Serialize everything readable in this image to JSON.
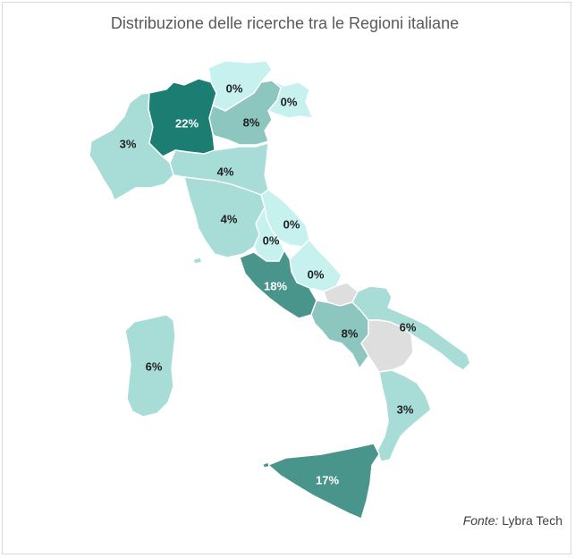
{
  "title": "Distribuzione delle ricerche tra le Regioni italiane",
  "source": {
    "label": "Fonte:",
    "value": "Lybra Tech"
  },
  "colors": {
    "c0": "#c6f1ef",
    "c1": "#a7dcd7",
    "c2": "#8cc6bf",
    "c3": "#5ea49b",
    "c4": "#4a958b",
    "c5": "#1c7d72",
    "nodata": "#dedede"
  },
  "chart_data": {
    "type": "choropleth",
    "unit": "%",
    "regions": [
      {
        "name": "Valle d'Aosta/Piemonte",
        "value": 3,
        "label": "3%"
      },
      {
        "name": "Lombardia",
        "value": 22,
        "label": "22%"
      },
      {
        "name": "Trentino-Alto Adige",
        "value": 0,
        "label": "0%"
      },
      {
        "name": "Veneto",
        "value": 8,
        "label": "8%"
      },
      {
        "name": "Friuli-Venezia Giulia",
        "value": 0,
        "label": "0%"
      },
      {
        "name": "Emilia-Romagna",
        "value": 4,
        "label": "4%"
      },
      {
        "name": "Toscana",
        "value": 4,
        "label": "4%"
      },
      {
        "name": "Marche",
        "value": 0,
        "label": "0%"
      },
      {
        "name": "Umbria",
        "value": 0,
        "label": "0%"
      },
      {
        "name": "Abruzzo",
        "value": 0,
        "label": "0%"
      },
      {
        "name": "Lazio",
        "value": 18,
        "label": "18%"
      },
      {
        "name": "Campania",
        "value": 8,
        "label": "8%"
      },
      {
        "name": "Puglia",
        "value": 6,
        "label": "6%"
      },
      {
        "name": "Calabria",
        "value": 3,
        "label": "3%"
      },
      {
        "name": "Sicilia",
        "value": 17,
        "label": "17%"
      },
      {
        "name": "Sardegna",
        "value": 6,
        "label": "6%"
      },
      {
        "name": "Molise",
        "value": null,
        "label": ""
      },
      {
        "name": "Basilicata",
        "value": null,
        "label": ""
      }
    ]
  }
}
